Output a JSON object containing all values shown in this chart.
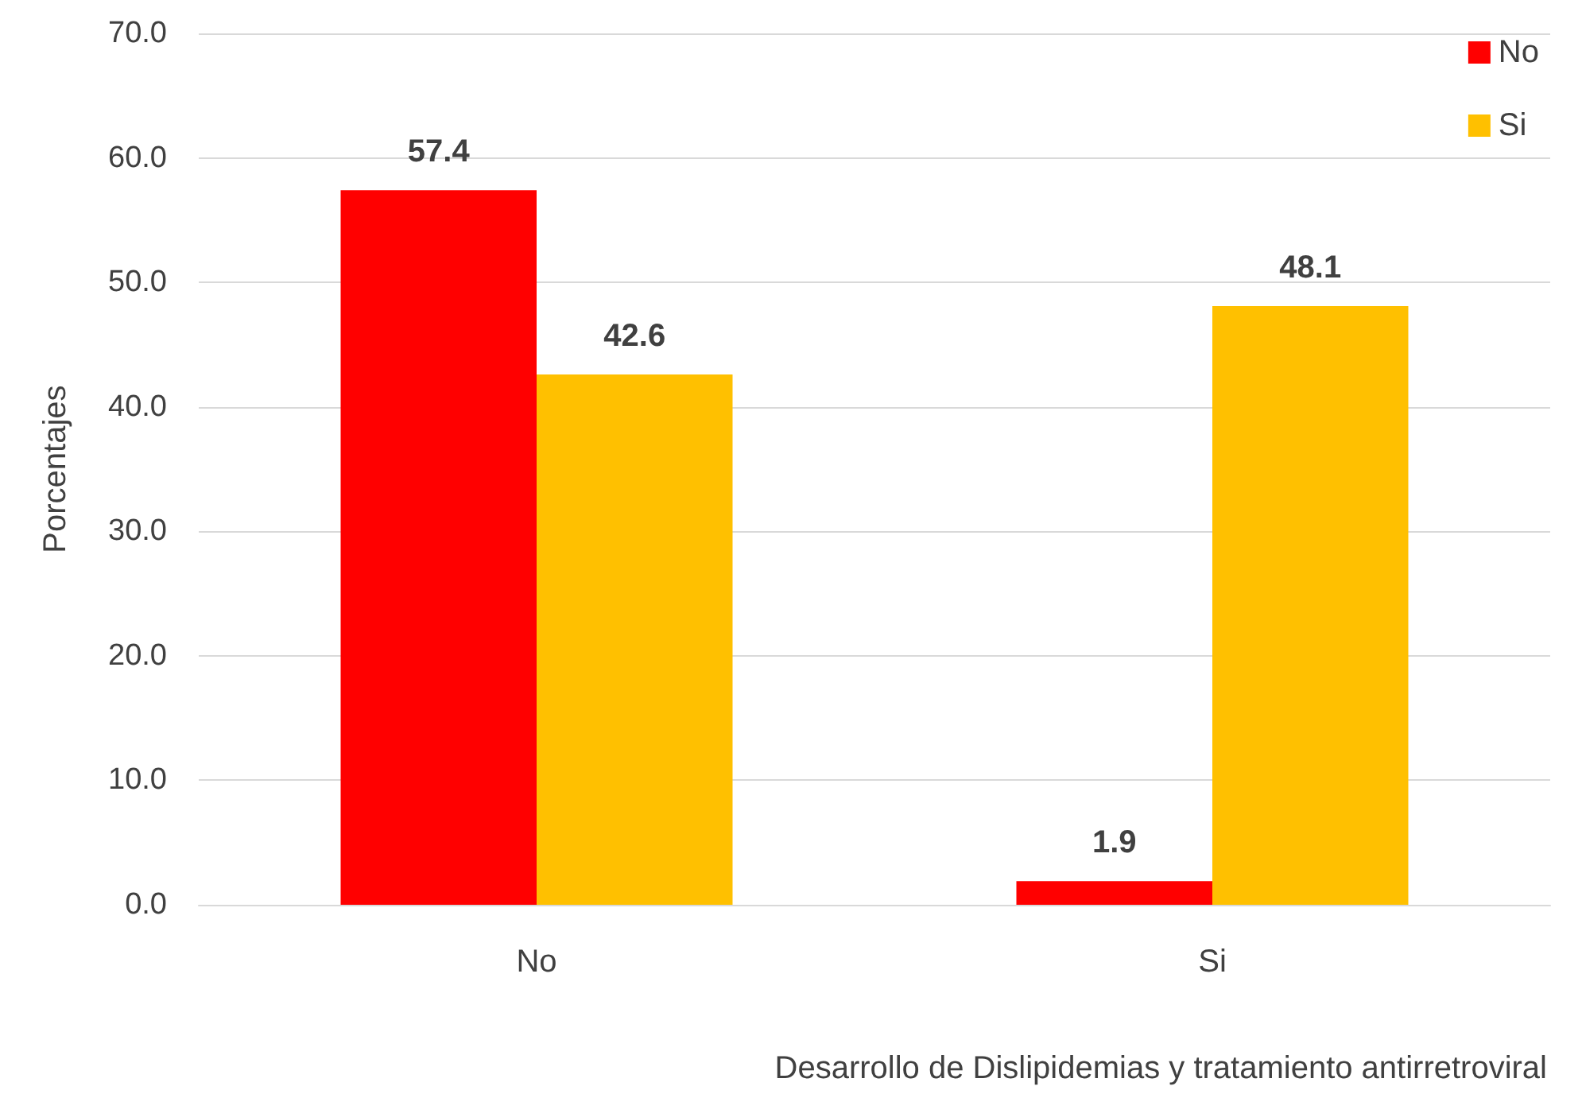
{
  "chart_data": {
    "type": "bar",
    "xlabel": "Desarrollo de Dislipidemias y tratamiento antirretroviral",
    "ylabel": "Porcentajes",
    "categories": [
      "No",
      "Si"
    ],
    "series": [
      {
        "name": "No",
        "color": "#ff0000",
        "values": [
          57.4,
          1.9
        ]
      },
      {
        "name": "Si",
        "color": "#ffc000",
        "values": [
          42.6,
          48.1
        ]
      }
    ],
    "ylim": [
      0,
      70
    ],
    "yticks": [
      {
        "value": 0,
        "label": "0.0"
      },
      {
        "value": 10,
        "label": "10.0"
      },
      {
        "value": 20,
        "label": "20.0"
      },
      {
        "value": 30,
        "label": "30.0"
      },
      {
        "value": 40,
        "label": "40.0"
      },
      {
        "value": 50,
        "label": "50.0"
      },
      {
        "value": 60,
        "label": "60.0"
      },
      {
        "value": 70,
        "label": "70.0"
      }
    ],
    "grid": "y",
    "legend": "top right",
    "data_labels": true
  }
}
